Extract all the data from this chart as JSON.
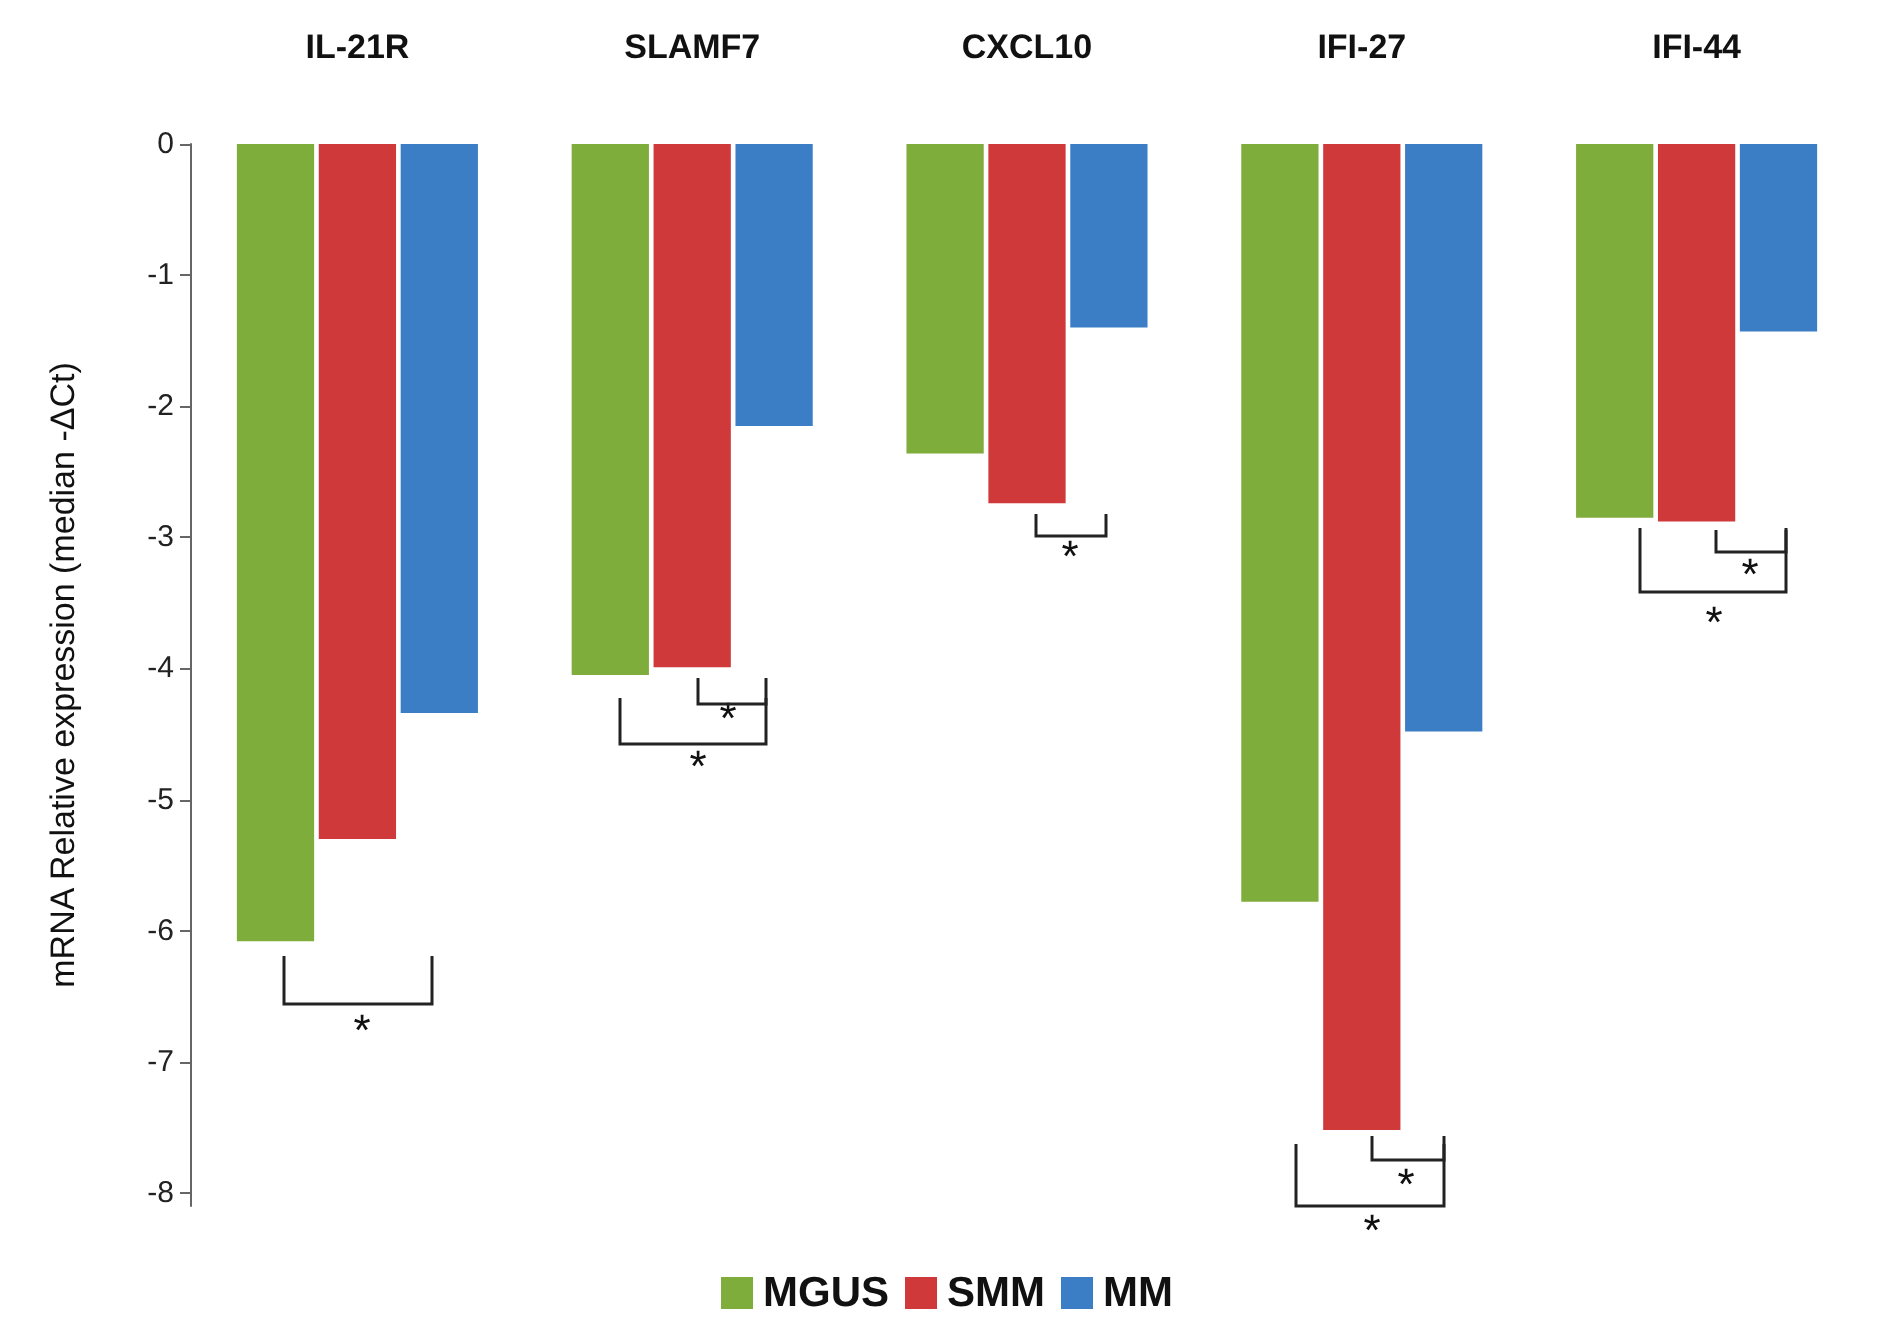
{
  "chart_data": {
    "type": "bar",
    "ylabel": "mRNA Relative expression (median -ΔCt)",
    "categories": [
      "IL-21R",
      "SLAMF7",
      "CXCL10",
      "IFI-27",
      "IFI-44"
    ],
    "series": [
      {
        "name": "MGUS",
        "color": "#7fad3c",
        "values": [
          -6.08,
          -4.05,
          -2.36,
          -5.78,
          -2.85
        ]
      },
      {
        "name": "SMM",
        "color": "#d0393a",
        "values": [
          -5.3,
          -3.99,
          -2.74,
          -7.52,
          -2.88
        ]
      },
      {
        "name": "MM",
        "color": "#3b7ec6",
        "values": [
          -4.34,
          -2.15,
          -1.4,
          -4.48,
          -1.43
        ]
      }
    ],
    "ylim": [
      -8.1,
      0
    ],
    "yticks": [
      -8,
      -7,
      -6,
      -5,
      -4,
      -3,
      -2,
      -1,
      0
    ],
    "grid": false,
    "legend": "bottom",
    "annotations": [
      "*",
      "*",
      "*",
      "*",
      "*",
      "*",
      "*",
      "*"
    ]
  }
}
